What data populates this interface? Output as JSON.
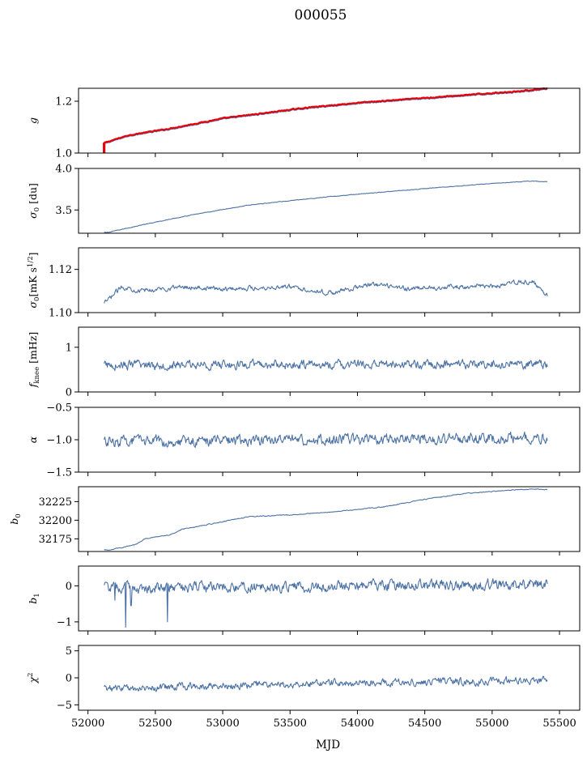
{
  "title": "000055",
  "chart_data": {
    "type": "line",
    "shared_x": {
      "label": "MJD",
      "lim": [
        51930,
        55650
      ],
      "ticks": [
        52000,
        52500,
        53000,
        53500,
        54000,
        54500,
        55000,
        55500
      ],
      "tick_labels": [
        "52000",
        "52500",
        "53000",
        "53500",
        "54000",
        "54500",
        "55000",
        "55500"
      ],
      "data_range": [
        52120,
        55410
      ]
    },
    "panels": [
      {
        "id": "g",
        "ylabel": "g",
        "ylim": [
          1.0,
          1.25
        ],
        "yticks": [
          1.0,
          1.2
        ],
        "ytick_labels": [
          "1.0",
          "1.2"
        ],
        "trend": [
          [
            52120,
            1.035
          ],
          [
            52300,
            1.065
          ],
          [
            52600,
            1.09
          ],
          [
            52800,
            1.11
          ],
          [
            53000,
            1.13
          ],
          [
            53300,
            1.15
          ],
          [
            53600,
            1.17
          ],
          [
            54000,
            1.19
          ],
          [
            54400,
            1.205
          ],
          [
            54800,
            1.22
          ],
          [
            55200,
            1.235
          ],
          [
            55410,
            1.245
          ]
        ],
        "noise": 0.002,
        "color": "#4c72a5",
        "reference": {
          "color": "#e8000b",
          "offset": 0.004,
          "spike": {
            "x": 52120,
            "from": 1.0,
            "to": 1.04
          }
        }
      },
      {
        "id": "sigma0_du",
        "ylabel": "σ0 [du]",
        "ylim": [
          3.22,
          4.0
        ],
        "yticks": [
          3.5,
          4.0
        ],
        "ytick_labels": [
          "3.5",
          "4.0"
        ],
        "trend": [
          [
            52150,
            3.23
          ],
          [
            52400,
            3.32
          ],
          [
            52800,
            3.45
          ],
          [
            53200,
            3.56
          ],
          [
            53600,
            3.63
          ],
          [
            54000,
            3.69
          ],
          [
            54300,
            3.73
          ],
          [
            54600,
            3.77
          ],
          [
            55000,
            3.82
          ],
          [
            55300,
            3.85
          ],
          [
            55410,
            3.84
          ]
        ],
        "noise": 0.004,
        "color": "#4c72a5"
      },
      {
        "id": "sigma0_mK",
        "ylabel": "σ0[mK s^1/2]",
        "ylim": [
          1.1,
          1.13
        ],
        "yticks": [
          1.1,
          1.12
        ],
        "ytick_labels": [
          "1.10",
          "1.12"
        ],
        "trend": [
          [
            52120,
            1.104
          ],
          [
            52250,
            1.112
          ],
          [
            52400,
            1.11
          ],
          [
            52700,
            1.112
          ],
          [
            53000,
            1.111
          ],
          [
            53500,
            1.112
          ],
          [
            53800,
            1.109
          ],
          [
            54100,
            1.113
          ],
          [
            54400,
            1.111
          ],
          [
            54700,
            1.112
          ],
          [
            55000,
            1.112
          ],
          [
            55200,
            1.114
          ],
          [
            55300,
            1.114
          ],
          [
            55410,
            1.108
          ]
        ],
        "noise": 0.0012,
        "color": "#4c72a5"
      },
      {
        "id": "fknee",
        "ylabel": "f_knee [mHz]",
        "ylim": [
          0,
          1.45
        ],
        "yticks": [
          0,
          1
        ],
        "ytick_labels": [
          "0",
          "1"
        ],
        "trend": [
          [
            52120,
            0.6
          ],
          [
            55410,
            0.62
          ]
        ],
        "noise": 0.11,
        "color": "#4c72a5"
      },
      {
        "id": "alpha",
        "ylabel": "α",
        "ylim": [
          -1.5,
          -0.5
        ],
        "yticks": [
          -1.5,
          -1.0,
          -0.5
        ],
        "ytick_labels": [
          "−1.5",
          "−1.0",
          "−0.5"
        ],
        "trend": [
          [
            52120,
            -1.03
          ],
          [
            53500,
            -1.0
          ],
          [
            55410,
            -0.97
          ]
        ],
        "noise": 0.09,
        "color": "#4c72a5"
      },
      {
        "id": "b0",
        "ylabel": "b0",
        "ylim": [
          32158,
          32245
        ],
        "yticks": [
          32175,
          32200,
          32225
        ],
        "ytick_labels": [
          "32175",
          "32200",
          "32225"
        ],
        "trend": [
          [
            52150,
            32160
          ],
          [
            52350,
            32167
          ],
          [
            52420,
            32175
          ],
          [
            52600,
            32180
          ],
          [
            52700,
            32188
          ],
          [
            53000,
            32198
          ],
          [
            53200,
            32205
          ],
          [
            53500,
            32207
          ],
          [
            53800,
            32211
          ],
          [
            54200,
            32218
          ],
          [
            54500,
            32228
          ],
          [
            54800,
            32236
          ],
          [
            55100,
            32240
          ],
          [
            55300,
            32242
          ],
          [
            55410,
            32241
          ]
        ],
        "noise": 0.6,
        "color": "#4c72a5"
      },
      {
        "id": "b1",
        "ylabel": "b1",
        "ylim": [
          -1.25,
          0.55
        ],
        "yticks": [
          -1,
          0
        ],
        "ytick_labels": [
          "−1",
          "0"
        ],
        "trend": [
          [
            52120,
            -0.05
          ],
          [
            53000,
            -0.05
          ],
          [
            54000,
            0.0
          ],
          [
            55410,
            0.05
          ]
        ],
        "noise": 0.16,
        "dips": [
          [
            52280,
            -1.15
          ],
          [
            52590,
            -1.0
          ],
          [
            52320,
            -0.55
          ],
          [
            52200,
            -0.4
          ]
        ],
        "color": "#4c72a5"
      },
      {
        "id": "chi2",
        "ylabel": "χ2",
        "ylim": [
          -6,
          6
        ],
        "yticks": [
          -5,
          0,
          5
        ],
        "ytick_labels": [
          "−5",
          "0",
          "5"
        ],
        "trend": [
          [
            52120,
            -2.0
          ],
          [
            53000,
            -1.5
          ],
          [
            54000,
            -0.9
          ],
          [
            55410,
            -0.5
          ]
        ],
        "noise": 0.75,
        "color": "#4c72a5"
      }
    ]
  }
}
